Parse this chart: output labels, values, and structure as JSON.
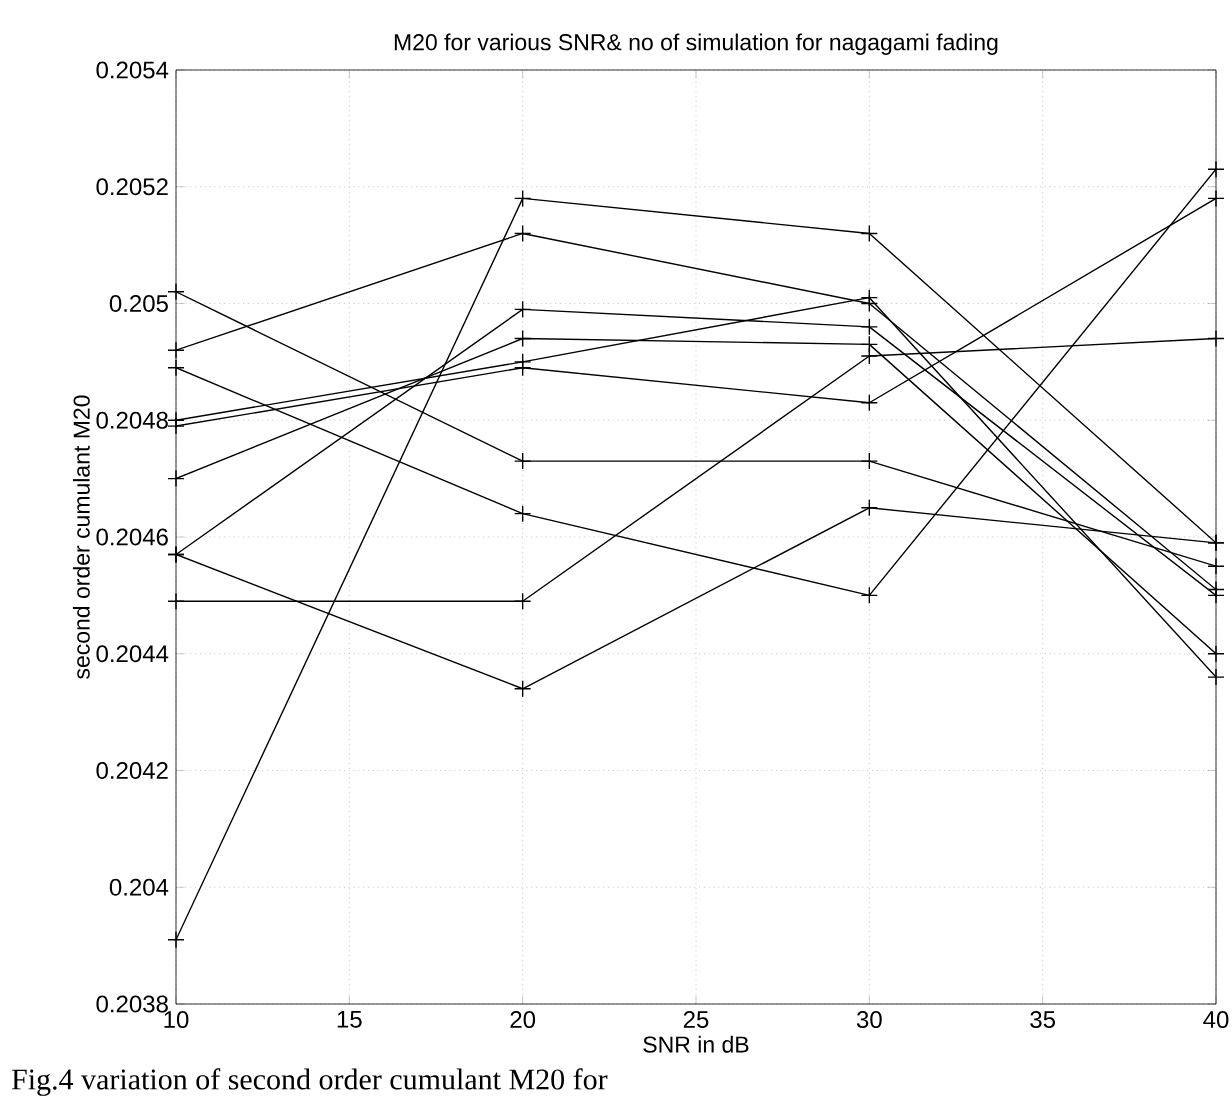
{
  "chart_data": {
    "type": "line",
    "title": "M20 for various SNR& no of simulation for nagagami fading",
    "xlabel": "SNR in dB",
    "ylabel": "second order cumulant M20",
    "x": [
      10,
      20,
      30,
      40
    ],
    "series": [
      {
        "color": "#000000",
        "values": [
          0.20391,
          0.20518,
          0.20512,
          0.20459
        ]
      },
      {
        "color": "#000000",
        "values": [
          0.20492,
          0.20512,
          0.205,
          0.20451
        ]
      },
      {
        "color": "#000000",
        "values": [
          0.20502,
          0.20473,
          0.20473,
          0.20455
        ]
      },
      {
        "color": "#000000",
        "values": [
          0.20489,
          0.20464,
          0.2045,
          0.20523
        ]
      },
      {
        "color": "#000000",
        "values": [
          0.20457,
          0.20499,
          0.20496,
          0.2045
        ]
      },
      {
        "color": "#000000",
        "values": [
          0.20457,
          0.20434,
          0.20465,
          0.20459
        ]
      },
      {
        "color": "#000000",
        "values": [
          0.2047,
          0.20494,
          0.20493,
          0.2044
        ]
      },
      {
        "color": "#000000",
        "values": [
          0.2048,
          0.2049,
          0.20501,
          0.20436
        ]
      },
      {
        "color": "#000000",
        "values": [
          0.20479,
          0.20489,
          0.20483,
          0.20518
        ]
      },
      {
        "color": "#000000",
        "values": [
          0.20449,
          0.20449,
          0.20491,
          0.20494
        ]
      }
    ],
    "xlim": [
      10,
      40
    ],
    "ylim": [
      0.2038,
      0.2054
    ],
    "xticks": [
      10,
      15,
      20,
      25,
      30,
      35,
      40
    ],
    "yticks": [
      0.2038,
      0.204,
      0.2042,
      0.2044,
      0.2046,
      0.2048,
      0.205,
      0.2052,
      0.2054
    ],
    "grid": true,
    "marker": "cross",
    "line_style": "solid",
    "annotations": [
      "Fig.4 variation of second order cumulant M20 for"
    ]
  }
}
